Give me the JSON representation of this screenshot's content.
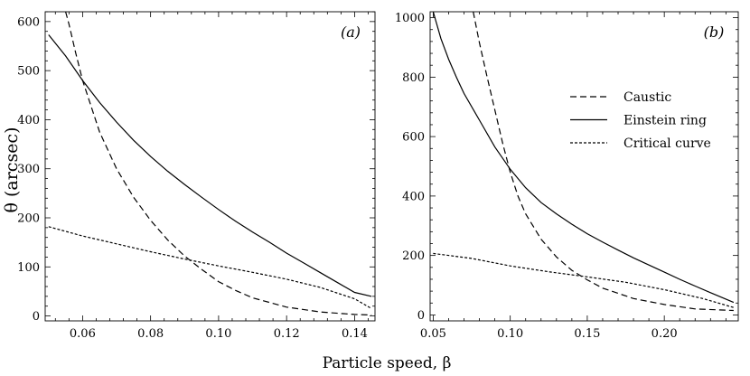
{
  "figure": {
    "ylabel": "θ (arcsec)",
    "xlabel": "Particle speed, β"
  },
  "chart_data": [
    {
      "type": "line",
      "panel_label": "(a)",
      "xlim": [
        0.049,
        0.146
      ],
      "ylim": [
        -10,
        620
      ],
      "xticks": [
        0.06,
        0.08,
        0.1,
        0.12,
        0.14
      ],
      "xtick_labels": [
        "0.06",
        "0.08",
        "0.10",
        "0.12",
        "0.14"
      ],
      "yticks": [
        0,
        100,
        200,
        300,
        400,
        500,
        600
      ],
      "ytick_labels": [
        "0",
        "100",
        "200",
        "300",
        "400",
        "500",
        "600"
      ],
      "series": [
        {
          "name": "Caustic",
          "style": "dashed",
          "x": [
            0.055,
            0.056,
            0.058,
            0.06,
            0.065,
            0.07,
            0.075,
            0.08,
            0.085,
            0.09,
            0.095,
            0.1,
            0.105,
            0.11,
            0.12,
            0.13,
            0.14,
            0.145
          ],
          "y": [
            620,
            595,
            535,
            480,
            375,
            300,
            242,
            195,
            155,
            122,
            95,
            70,
            52,
            37,
            18,
            8,
            3,
            2
          ]
        },
        {
          "name": "Einstein ring",
          "style": "solid",
          "x": [
            0.05,
            0.055,
            0.06,
            0.065,
            0.07,
            0.075,
            0.08,
            0.085,
            0.09,
            0.095,
            0.1,
            0.105,
            0.11,
            0.115,
            0.12,
            0.125,
            0.13,
            0.135,
            0.14,
            0.145
          ],
          "y": [
            573,
            530,
            480,
            435,
            395,
            358,
            325,
            295,
            268,
            242,
            217,
            193,
            171,
            150,
            128,
            108,
            88,
            68,
            48,
            40
          ]
        },
        {
          "name": "Critical curve",
          "style": "dotted",
          "x": [
            0.05,
            0.06,
            0.07,
            0.08,
            0.09,
            0.1,
            0.11,
            0.12,
            0.13,
            0.14,
            0.145
          ],
          "y": [
            182,
            163,
            147,
            131,
            116,
            102,
            89,
            75,
            58,
            35,
            15
          ]
        }
      ]
    },
    {
      "type": "line",
      "panel_label": "(b)",
      "xlim": [
        0.048,
        0.248
      ],
      "ylim": [
        -20,
        1020
      ],
      "xticks": [
        0.05,
        0.1,
        0.15,
        0.2
      ],
      "xtick_labels": [
        "0.05",
        "0.10",
        "0.15",
        "0.20"
      ],
      "yticks": [
        0,
        200,
        400,
        600,
        800,
        1000
      ],
      "ytick_labels": [
        "0",
        "200",
        "400",
        "600",
        "800",
        "1000"
      ],
      "legend": {
        "placement": "center-right",
        "entries": [
          "Caustic",
          "Einstein ring",
          "Critical curve"
        ]
      },
      "series": [
        {
          "name": "Caustic",
          "style": "dashed",
          "x": [
            0.076,
            0.08,
            0.085,
            0.09,
            0.095,
            0.1,
            0.105,
            0.11,
            0.12,
            0.13,
            0.14,
            0.15,
            0.16,
            0.18,
            0.2,
            0.22,
            0.245
          ],
          "y": [
            1020,
            915,
            800,
            690,
            580,
            480,
            400,
            340,
            255,
            195,
            150,
            118,
            90,
            55,
            35,
            20,
            15
          ]
        },
        {
          "name": "Einstein ring",
          "style": "solid",
          "x": [
            0.05,
            0.055,
            0.06,
            0.065,
            0.07,
            0.08,
            0.09,
            0.1,
            0.11,
            0.12,
            0.13,
            0.14,
            0.15,
            0.16,
            0.17,
            0.18,
            0.19,
            0.2,
            0.21,
            0.22,
            0.23,
            0.245
          ],
          "y": [
            1020,
            930,
            860,
            800,
            745,
            655,
            565,
            490,
            428,
            378,
            340,
            305,
            273,
            245,
            218,
            192,
            168,
            144,
            120,
            97,
            75,
            42
          ]
        },
        {
          "name": "Critical curve",
          "style": "dotted",
          "x": [
            0.05,
            0.075,
            0.1,
            0.125,
            0.15,
            0.175,
            0.2,
            0.225,
            0.245
          ],
          "y": [
            207,
            190,
            165,
            145,
            128,
            110,
            85,
            55,
            25
          ]
        }
      ]
    }
  ]
}
